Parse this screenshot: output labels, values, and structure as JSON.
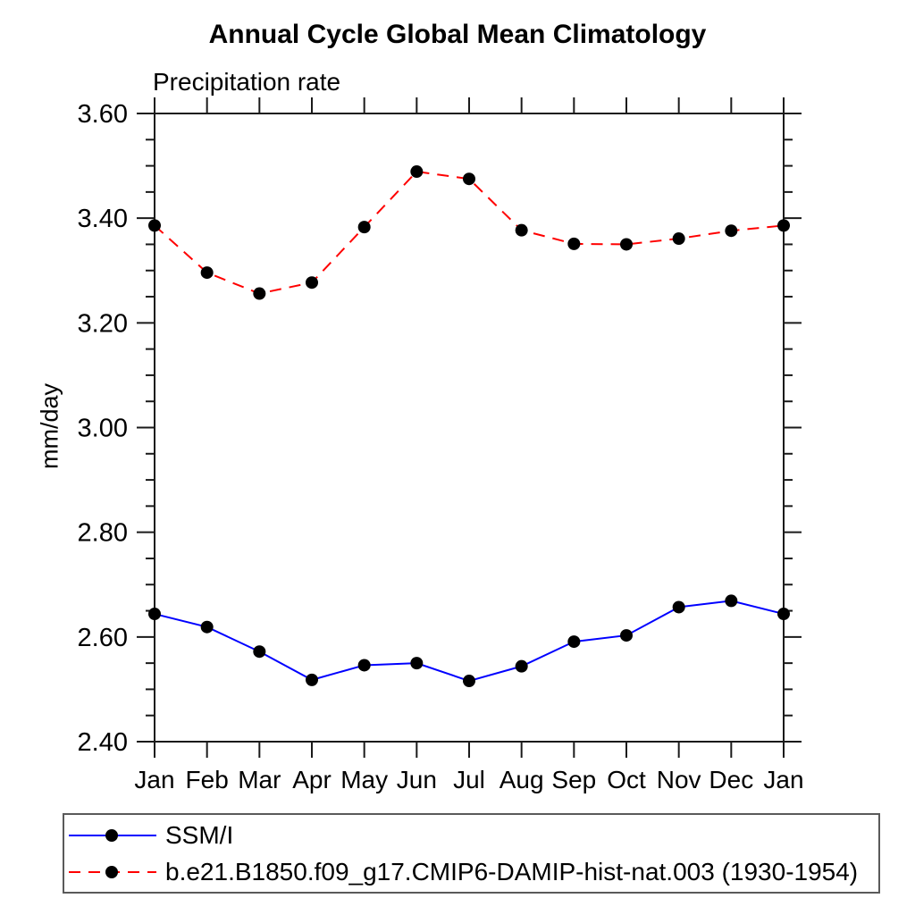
{
  "title": "Annual Cycle Global Mean Climatology",
  "subtitle": "Precipitation rate",
  "y_axis_label": "mm/day",
  "axis_color": "#1a1a1a",
  "legend": {
    "items": [
      {
        "label": "SSM/I"
      },
      {
        "label": "b.e21.B1850.f09_g17.CMIP6-DAMIP-hist-nat.003 (1930-1954)"
      }
    ]
  },
  "chart_data": {
    "type": "line",
    "title": "Annual Cycle Global Mean Climatology",
    "subtitle": "Precipitation rate",
    "xlabel": "",
    "ylabel": "mm/day",
    "categories": [
      "Jan",
      "Feb",
      "Mar",
      "Apr",
      "May",
      "Jun",
      "Jul",
      "Aug",
      "Sep",
      "Oct",
      "Nov",
      "Dec",
      "Jan"
    ],
    "series": [
      {
        "name": "SSM/I",
        "color": "#0000ff",
        "line_style": "solid",
        "marker": "circle",
        "marker_color": "#000000",
        "values": [
          2.644,
          2.619,
          2.572,
          2.518,
          2.546,
          2.55,
          2.516,
          2.544,
          2.591,
          2.603,
          2.657,
          2.669,
          2.644
        ]
      },
      {
        "name": "b.e21.B1850.f09_g17.CMIP6-DAMIP-hist-nat.003 (1930-1954)",
        "color": "#ff0000",
        "line_style": "dashed",
        "marker": "circle",
        "marker_color": "#000000",
        "values": [
          3.386,
          3.296,
          3.256,
          3.277,
          3.383,
          3.489,
          3.475,
          3.377,
          3.351,
          3.35,
          3.361,
          3.376,
          3.386
        ]
      }
    ],
    "ylim": [
      2.4,
      3.6
    ],
    "ytick_major_interval": 0.2,
    "ytick_minor_interval": 0.05,
    "ytick_labels": [
      "2.40",
      "2.60",
      "2.80",
      "3.00",
      "3.20",
      "3.40",
      "3.60"
    ],
    "grid": false,
    "ticks_direction": "outward",
    "legend_position": "bottom-left"
  }
}
